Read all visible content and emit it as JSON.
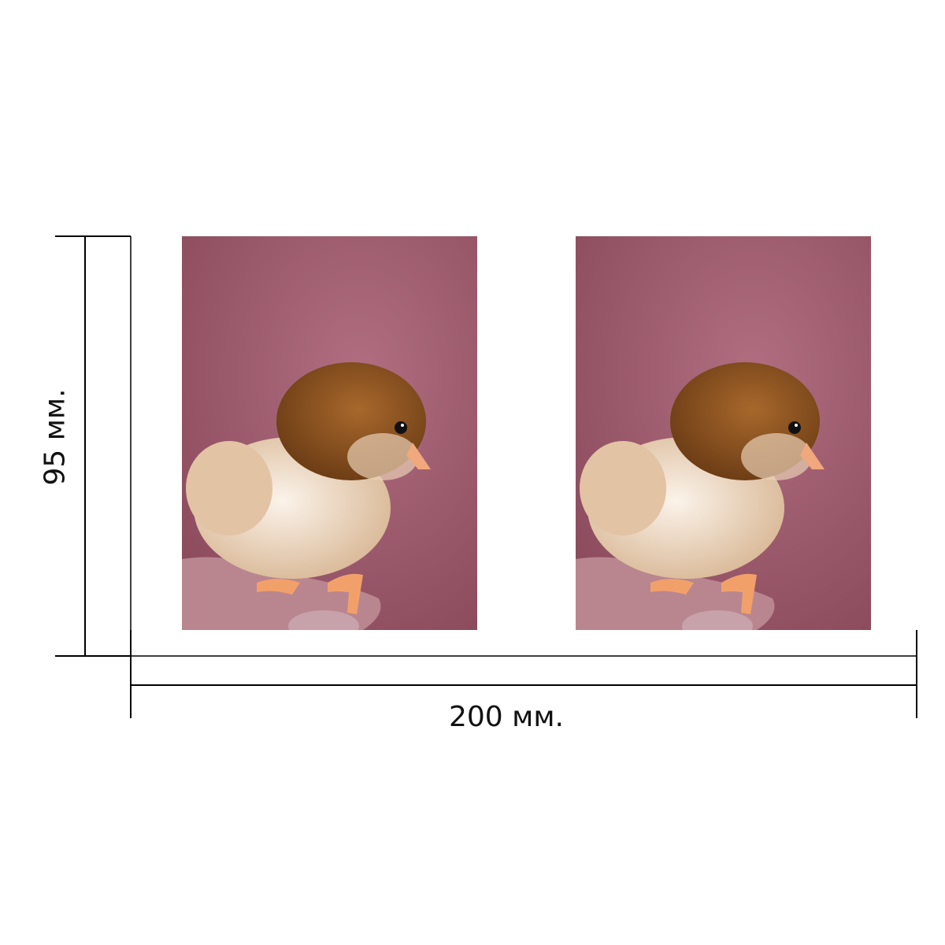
{
  "dimensions": {
    "width_label": "200 мм.",
    "height_label": "95 мм."
  },
  "photos": [
    {
      "subject": "chick-photo"
    },
    {
      "subject": "chick-photo"
    }
  ],
  "colors": {
    "background": "#ffffff",
    "photo_backdrop": "#a35f72",
    "dimension_lines": "#000000"
  }
}
